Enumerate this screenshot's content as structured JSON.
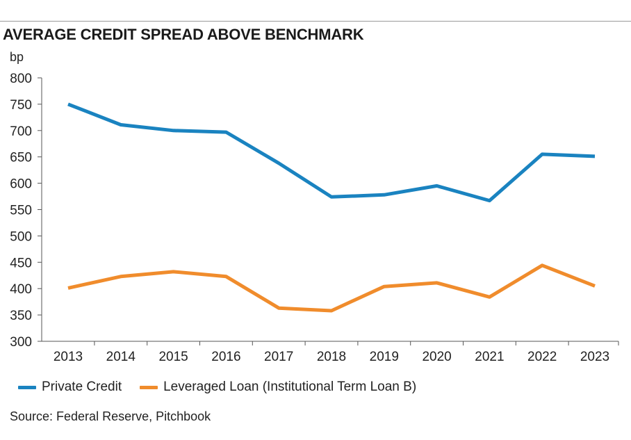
{
  "chart_data": {
    "type": "line",
    "title": "AVERAGE CREDIT SPREAD ABOVE BENCHMARK",
    "ylabel": "bp",
    "xlabel": "",
    "ylim": [
      300,
      800
    ],
    "yticks": [
      800,
      750,
      700,
      650,
      600,
      550,
      500,
      450,
      400,
      350,
      300
    ],
    "categories": [
      "2013",
      "2014",
      "2015",
      "2016",
      "2017",
      "2018",
      "2019",
      "2020",
      "2021",
      "2022",
      "2023"
    ],
    "series": [
      {
        "name": "Private Credit",
        "color": "#1a83c0",
        "values": [
          750,
          711,
          700,
          697,
          638,
          574,
          578,
          595,
          567,
          655,
          651
        ]
      },
      {
        "name": "Leveraged Loan (Institutional Term Loan B)",
        "color": "#f08c2c",
        "values": [
          401,
          423,
          432,
          423,
          363,
          358,
          404,
          411,
          384,
          444,
          405
        ]
      }
    ],
    "legend_position": "bottom-left",
    "grid": false
  },
  "source": "Source: Federal Reserve, Pitchbook"
}
